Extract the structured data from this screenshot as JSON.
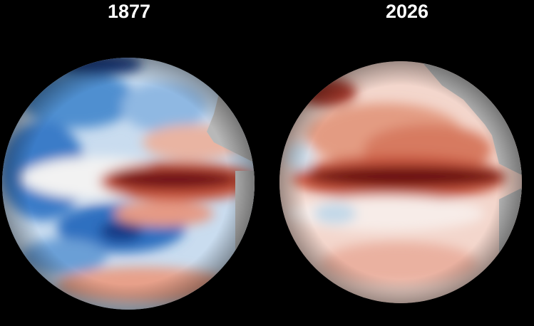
{
  "panels": [
    {
      "title": "1877"
    },
    {
      "title": "2026"
    }
  ]
}
